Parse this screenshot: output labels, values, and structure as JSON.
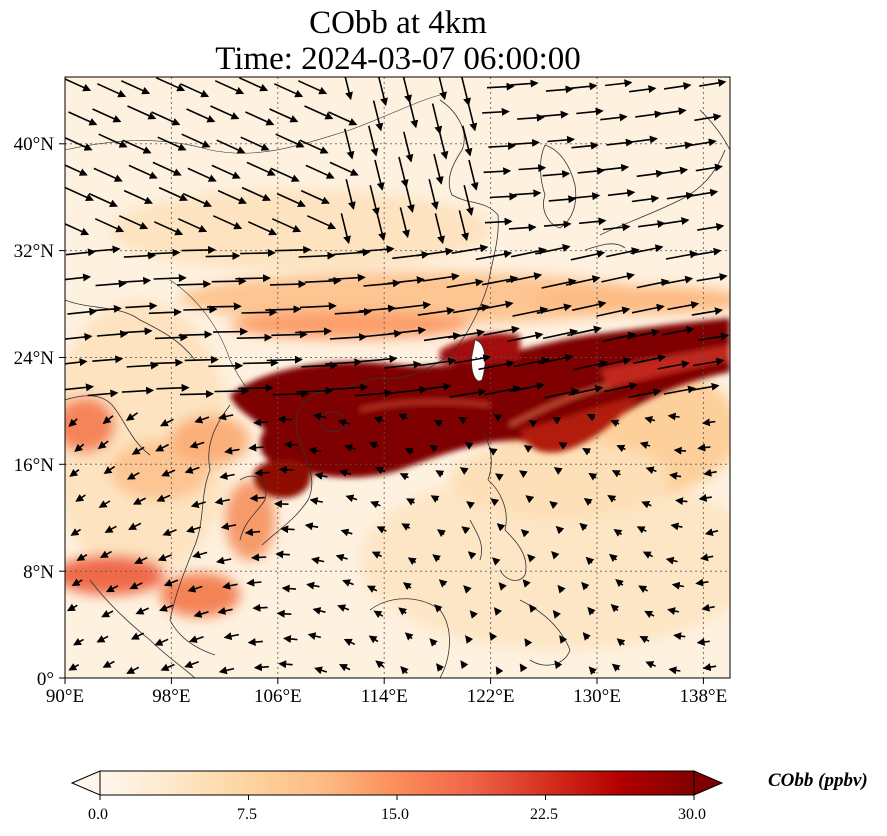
{
  "title": {
    "line1": "CObb at 4km",
    "line2": "Time: 2024-03-07 06:00:00"
  },
  "map": {
    "lon_range": [
      90,
      140
    ],
    "lat_range": [
      0,
      45
    ],
    "lon_ticks": [
      "90°E",
      "98°E",
      "106°E",
      "114°E",
      "122°E",
      "130°E",
      "138°E"
    ],
    "lat_ticks": [
      "0°",
      "8°N",
      "16°N",
      "24°N",
      "32°N",
      "40°N"
    ],
    "gridlines": true,
    "field": "CObb",
    "vector_field": "wind"
  },
  "colorbar": {
    "title": "CObb (ppbv)",
    "colormap": "OrRd",
    "colors": [
      "#fff7ec",
      "#fee8c8",
      "#fdd49e",
      "#fdbb84",
      "#fc8d59",
      "#ef6548",
      "#d7301f",
      "#b30000",
      "#7f0000"
    ],
    "ticks": [
      "0.0",
      "7.5",
      "15.0",
      "22.5",
      "30.0"
    ],
    "range": [
      0,
      30
    ],
    "extend": "both"
  }
}
